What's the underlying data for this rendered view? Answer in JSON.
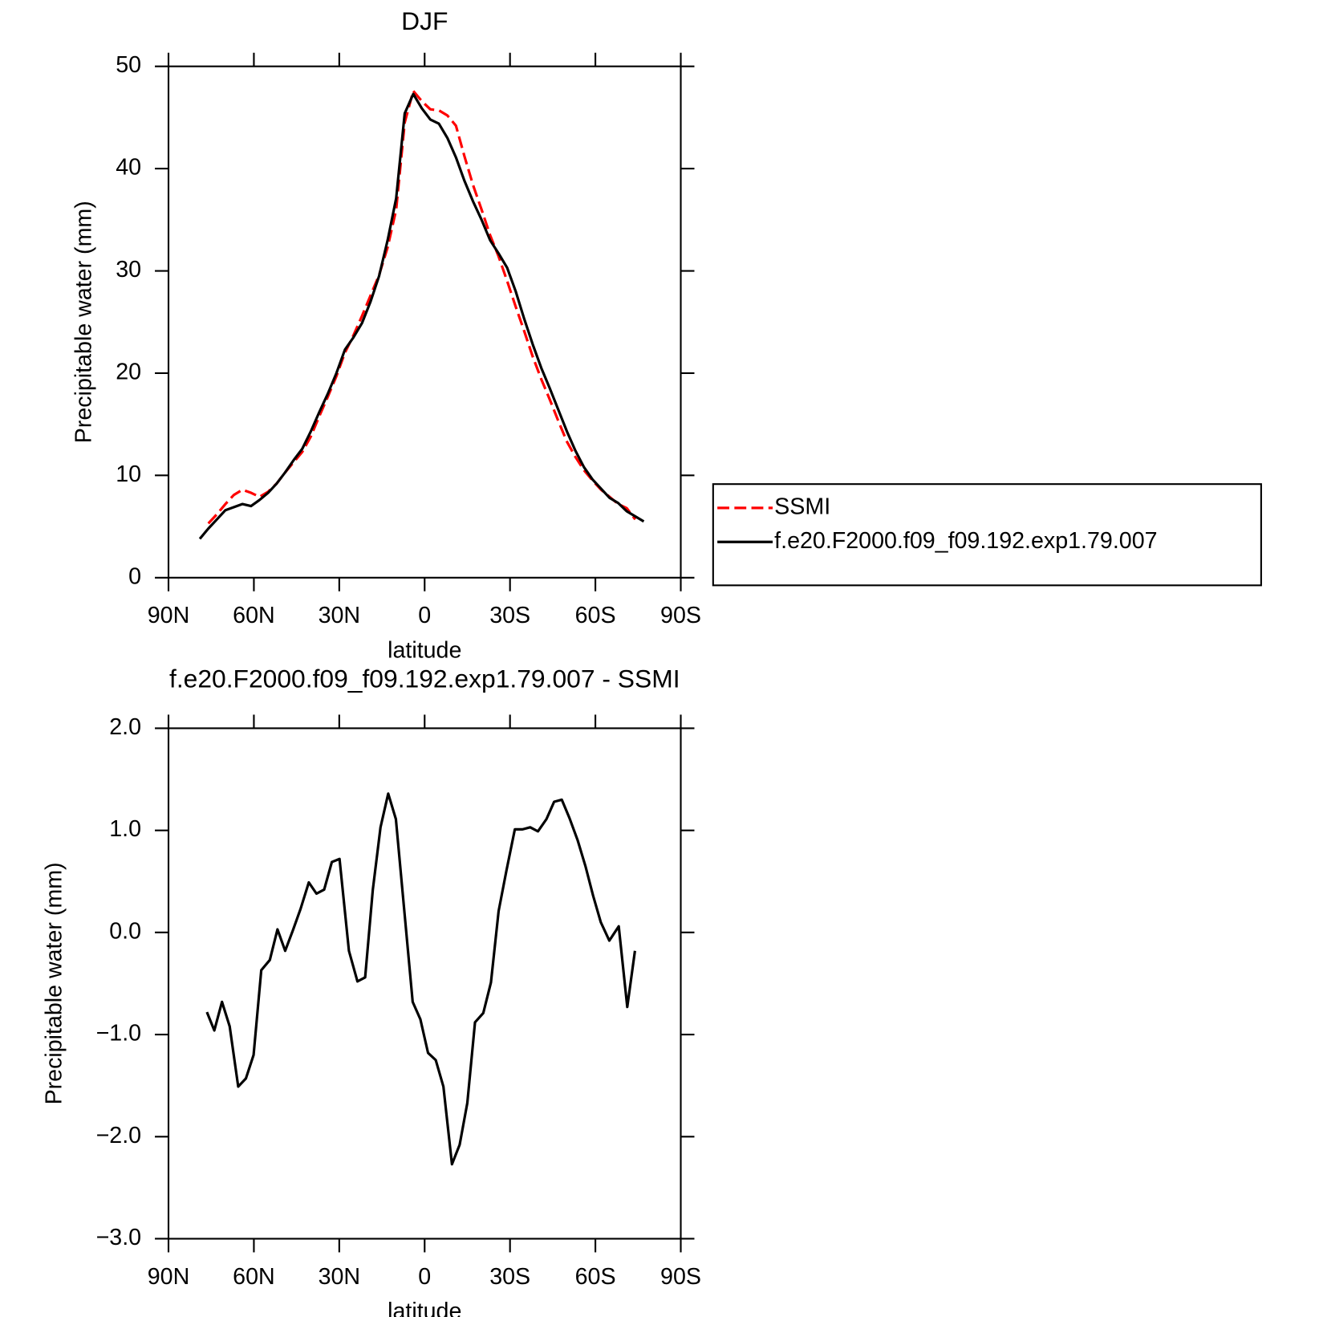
{
  "chart_data": [
    {
      "type": "line",
      "title": "DJF",
      "xlabel": "latitude",
      "ylabel": "Precipitable water (mm)",
      "x": [
        79,
        76,
        73,
        70,
        67,
        64,
        61,
        58,
        55,
        52,
        49,
        46,
        43,
        40,
        37,
        34,
        31,
        28,
        25,
        22,
        19,
        16,
        13,
        10,
        7,
        4,
        1,
        -2,
        -5,
        -8,
        -11,
        -14,
        -17,
        -20,
        -23,
        -26,
        -29,
        -32,
        -35,
        -38,
        -41,
        -44,
        -47,
        -50,
        -53,
        -56,
        -59,
        -62,
        -65,
        -68,
        -71,
        -74,
        -77
      ],
      "series": [
        {
          "name": "SSMI",
          "color": "#ff0000",
          "style": "dashed",
          "values": [
            null,
            5.3,
            6.2,
            7.2,
            8.1,
            8.6,
            8.3,
            7.9,
            8.4,
            9.2,
            10.3,
            11.3,
            12.3,
            13.8,
            15.8,
            17.7,
            19.7,
            22.0,
            23.7,
            25.6,
            27.6,
            29.6,
            32.3,
            36.0,
            44.5,
            47.6,
            46.6,
            45.8,
            45.7,
            45.2,
            44.2,
            41.2,
            38.4,
            36.0,
            33.5,
            31.4,
            29.0,
            26.5,
            24.1,
            21.6,
            19.4,
            17.4,
            15.3,
            13.3,
            11.8,
            10.5,
            9.5,
            8.6,
            7.9,
            7.2,
            6.8,
            5.7,
            null
          ]
        },
        {
          "name": "f.e20.F2000.f09_f09.192.exp1.79.007",
          "color": "#000000",
          "style": "solid",
          "values": [
            3.8,
            4.8,
            5.7,
            6.6,
            6.9,
            7.2,
            7.0,
            7.6,
            8.3,
            9.2,
            10.3,
            11.5,
            12.6,
            14.3,
            16.2,
            18.0,
            20.0,
            22.3,
            23.5,
            24.9,
            27.0,
            29.5,
            33.0,
            37.1,
            45.4,
            47.3,
            45.9,
            44.8,
            44.4,
            43.0,
            41.1,
            38.8,
            36.8,
            35.0,
            33.0,
            31.7,
            30.3,
            28.0,
            25.3,
            22.8,
            20.5,
            18.5,
            16.4,
            14.3,
            12.4,
            10.8,
            9.6,
            8.7,
            7.8,
            7.3,
            6.5,
            6.0,
            5.5
          ]
        }
      ],
      "xlim": [
        90,
        -90
      ],
      "xticks": [
        {
          "value": 90,
          "label": "90N"
        },
        {
          "value": 60,
          "label": "60N"
        },
        {
          "value": 30,
          "label": "30N"
        },
        0,
        {
          "value": -30,
          "label": "30S"
        },
        {
          "value": -60,
          "label": "60S"
        },
        {
          "value": -90,
          "label": "90S"
        }
      ],
      "ylim": [
        0,
        50
      ],
      "yticks": [
        0,
        10,
        20,
        30,
        40,
        50
      ],
      "legend": "right"
    },
    {
      "type": "line",
      "title": "f.e20.F2000.f09_f09.192.exp1.79.007 - SSMI",
      "xlabel": "latitude",
      "ylabel": "Precipitable water (mm)",
      "x": [
        76.5,
        73.9,
        71.2,
        68.5,
        65.5,
        62.8,
        60.1,
        57.4,
        54.4,
        51.7,
        49.0,
        46.3,
        43.6,
        40.7,
        38.0,
        35.3,
        32.6,
        29.9,
        26.6,
        23.6,
        20.9,
        18.2,
        15.5,
        12.8,
        10.1,
        7.2,
        4.2,
        1.5,
        -1.2,
        -3.9,
        -6.6,
        -9.6,
        -12.3,
        -15.0,
        -17.7,
        -20.6,
        -23.3,
        -26.0,
        -28.7,
        -31.7,
        -34.4,
        -37.1,
        -39.8,
        -42.8,
        -45.5,
        -48.2,
        -50.9,
        -53.8,
        -56.5,
        -59.2,
        -61.9,
        -64.9,
        -68.2,
        -71.2,
        -73.9
      ],
      "color": "#000000",
      "values": [
        -0.78,
        -0.96,
        -0.68,
        -0.92,
        -1.51,
        -1.43,
        -1.2,
        -0.37,
        -0.27,
        0.03,
        -0.18,
        0.02,
        0.23,
        0.49,
        0.38,
        0.42,
        0.69,
        0.72,
        -0.18,
        -0.48,
        -0.44,
        0.42,
        1.03,
        1.36,
        1.11,
        0.23,
        -0.68,
        -0.85,
        -1.18,
        -1.25,
        -1.51,
        -2.27,
        -2.08,
        -1.67,
        -0.88,
        -0.79,
        -0.49,
        0.21,
        0.6,
        1.01,
        1.01,
        1.03,
        0.99,
        1.11,
        1.28,
        1.3,
        1.12,
        0.9,
        0.65,
        0.36,
        0.1,
        -0.08,
        0.06,
        -0.73,
        -0.18
      ],
      "xlim": [
        90,
        -90
      ],
      "xticks": [
        {
          "value": 90,
          "label": "90N"
        },
        {
          "value": 60,
          "label": "60N"
        },
        {
          "value": 30,
          "label": "30N"
        },
        0,
        {
          "value": -30,
          "label": "30S"
        },
        {
          "value": -60,
          "label": "60S"
        },
        {
          "value": -90,
          "label": "90S"
        }
      ],
      "ylim": [
        -3,
        2
      ],
      "yticks": [
        {
          "value": -3,
          "label": "−3.0"
        },
        {
          "value": -2,
          "label": "−2.0"
        },
        {
          "value": -1,
          "label": "−1.0"
        },
        {
          "value": 0,
          "label": "0.0"
        },
        {
          "value": 1,
          "label": "1.0"
        },
        {
          "value": 2,
          "label": "2.0"
        }
      ]
    }
  ]
}
